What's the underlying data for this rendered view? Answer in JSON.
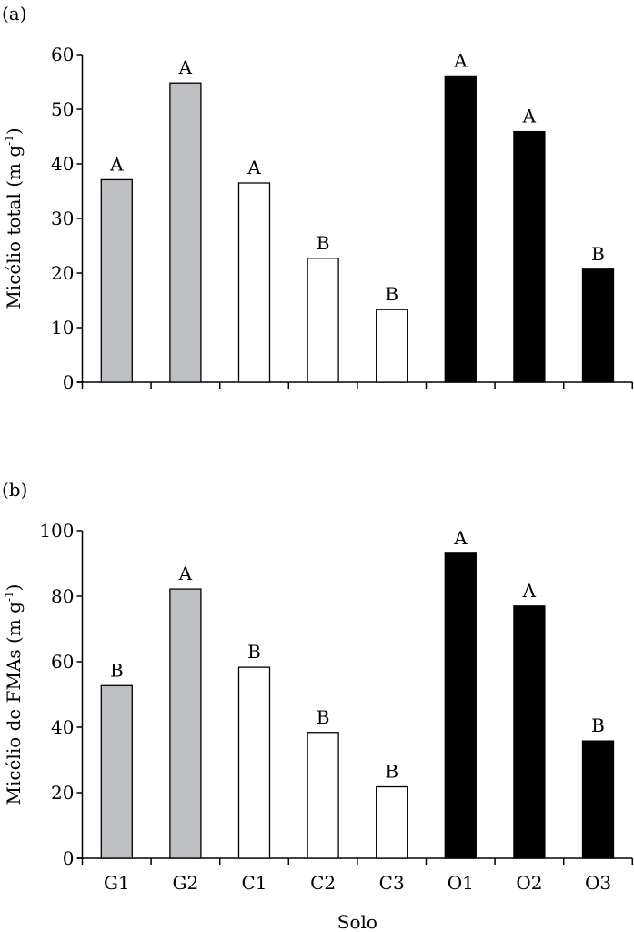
{
  "chart_data": [
    {
      "type": "bar",
      "panel_label": "(a)",
      "title": "",
      "xlabel": "",
      "ylabel": "Micélio total (m g",
      "ylabel_sup": "-1",
      "ylabel_close": ")",
      "ylim": [
        0,
        60
      ],
      "yticks": [
        0,
        10,
        20,
        30,
        40,
        50,
        60
      ],
      "categories": [
        "G1",
        "G2",
        "C1",
        "C2",
        "C3",
        "O1",
        "O2",
        "O3"
      ],
      "values": [
        37.1,
        54.8,
        36.5,
        22.7,
        13.3,
        56.1,
        45.9,
        20.7
      ],
      "letters": [
        "A",
        "A",
        "A",
        "B",
        "B",
        "A",
        "A",
        "B"
      ],
      "groups": [
        "G",
        "G",
        "C",
        "C",
        "C",
        "O",
        "O",
        "O"
      ],
      "grid": false
    },
    {
      "type": "bar",
      "panel_label": "(b)",
      "title": "",
      "xlabel": "Solo",
      "ylabel": "Micélio de FMAs (m g",
      "ylabel_sup": "-1",
      "ylabel_close": ")",
      "ylim": [
        0,
        100
      ],
      "yticks": [
        0,
        20,
        40,
        60,
        80,
        100
      ],
      "categories": [
        "G1",
        "G2",
        "C1",
        "C2",
        "C3",
        "O1",
        "O2",
        "O3"
      ],
      "values": [
        52.7,
        82.2,
        58.3,
        38.4,
        21.8,
        93.1,
        77.0,
        35.8
      ],
      "letters": [
        "B",
        "A",
        "B",
        "B",
        "B",
        "A",
        "A",
        "B"
      ],
      "groups": [
        "G",
        "G",
        "C",
        "C",
        "C",
        "O",
        "O",
        "O"
      ],
      "grid": false
    }
  ],
  "colors": {
    "G": "#bebfc2",
    "C": "#ffffff",
    "O": "#000000"
  }
}
